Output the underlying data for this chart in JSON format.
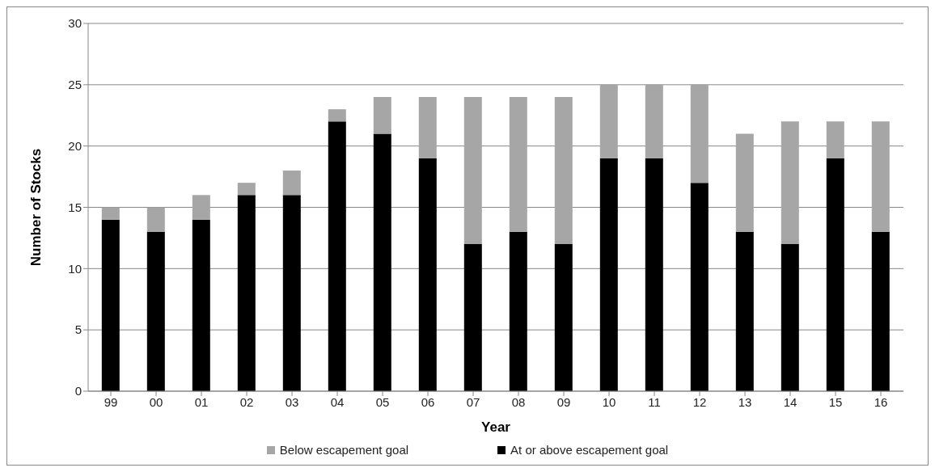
{
  "chart_data": {
    "type": "bar",
    "stacked": true,
    "xlabel": "Year",
    "ylabel": "Number of Stocks",
    "categories": [
      "99",
      "00",
      "01",
      "02",
      "03",
      "04",
      "05",
      "06",
      "07",
      "08",
      "09",
      "10",
      "11",
      "12",
      "13",
      "14",
      "15",
      "16"
    ],
    "series": [
      {
        "name": "At or above escapement goal",
        "color": "#000000",
        "values": [
          14,
          13,
          14,
          16,
          16,
          22,
          21,
          19,
          12,
          13,
          12,
          19,
          19,
          17,
          13,
          12,
          19,
          13
        ]
      },
      {
        "name": "Below escapement goal",
        "color": "#a6a6a6",
        "values": [
          1,
          2,
          2,
          1,
          2,
          1,
          3,
          5,
          12,
          11,
          12,
          6,
          6,
          8,
          8,
          10,
          3,
          9
        ]
      }
    ],
    "ylim": [
      0,
      30
    ],
    "yticks": [
      0,
      5,
      10,
      15,
      20,
      25,
      30
    ],
    "grid": "y",
    "legend": "bottom"
  }
}
